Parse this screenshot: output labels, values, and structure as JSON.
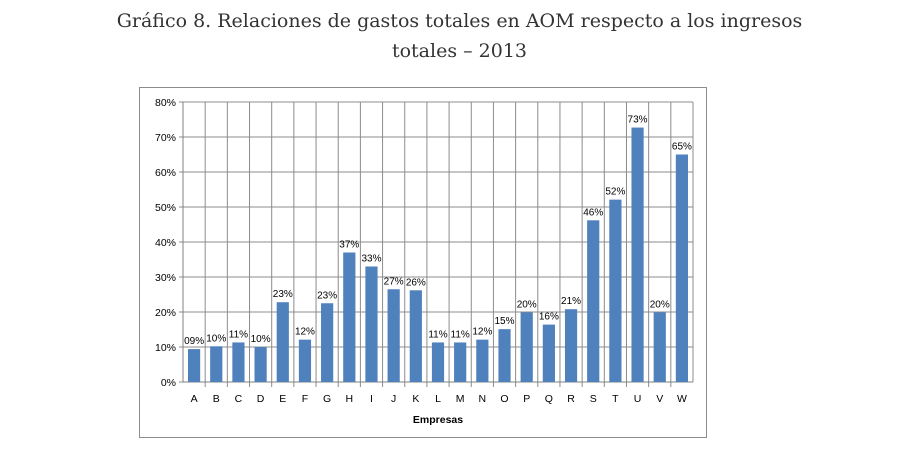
{
  "title_line1": "Gráfico 8. Relaciones de gastos totales en AOM respecto a los ingresos",
  "title_line2": "totales – 2013",
  "chart_data": {
    "type": "bar",
    "title": "Gráfico 8. Relaciones de gastos totales en AOM respecto a los ingresos totales – 2013",
    "xlabel": "Empresas",
    "ylabel": "",
    "ylim": [
      0,
      80
    ],
    "yticks": [
      0,
      10,
      20,
      30,
      40,
      50,
      60,
      70,
      80
    ],
    "ytick_labels": [
      "0%",
      "10%",
      "20%",
      "30%",
      "40%",
      "50%",
      "60%",
      "70%",
      "80%"
    ],
    "grid": true,
    "categories": [
      "A",
      "B",
      "C",
      "D",
      "E",
      "F",
      "G",
      "H",
      "I",
      "J",
      "K",
      "L",
      "M",
      "N",
      "O",
      "P",
      "Q",
      "R",
      "S",
      "T",
      "U",
      "V",
      "W"
    ],
    "values": [
      9.4,
      10.2,
      11.3,
      10.0,
      22.8,
      12.1,
      22.5,
      37.0,
      33.0,
      26.5,
      26.2,
      11.3,
      11.3,
      12.1,
      15.1,
      19.9,
      16.4,
      20.8,
      46.2,
      52.1,
      72.7,
      19.9,
      65.0
    ],
    "data_labels": [
      "09%",
      "10%",
      "11%",
      "10%",
      "23%",
      "12%",
      "23%",
      "37%",
      "33%",
      "27%",
      "26%",
      "11%",
      "11%",
      "12%",
      "15%",
      "20%",
      "16%",
      "21%",
      "46%",
      "52%",
      "73%",
      "20%",
      "65%"
    ],
    "bar_color": "#4f81bd",
    "grid_color": "#8c8c8c"
  }
}
